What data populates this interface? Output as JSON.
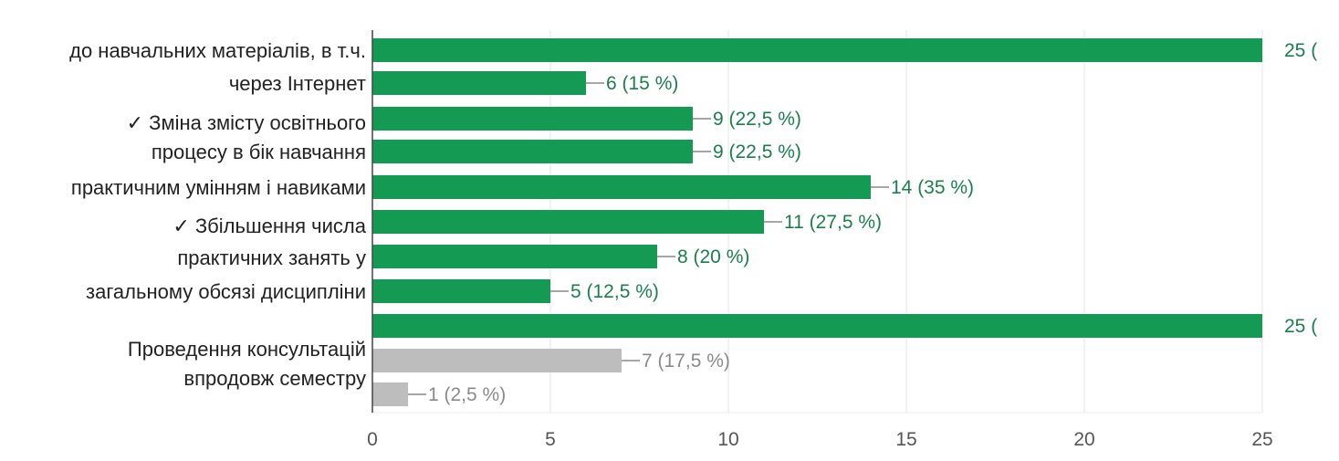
{
  "chart_data": {
    "type": "bar",
    "orientation": "horizontal",
    "category_labels": [
      "до навчальних матеріалів, в т.ч.",
      "через Інтернет",
      "✓ Зміна змісту освітнього",
      "процесу в бік навчання",
      "практичним умінням і навиками",
      "✓ Збільшення числа",
      "практичних занять у",
      "загальному обсязі дисципліни",
      "Проведення консультацій",
      "впродовж семестру"
    ],
    "bars": [
      {
        "value": 25,
        "label": "25 (",
        "color": "#159a54"
      },
      {
        "value": 6,
        "label": "6 (15 %)",
        "color": "#159a54"
      },
      {
        "value": 9,
        "label": "9 (22,5 %)",
        "color": "#159a54"
      },
      {
        "value": 9,
        "label": "9 (22,5 %)",
        "color": "#159a54"
      },
      {
        "value": 14,
        "label": "14 (35 %)",
        "color": "#159a54"
      },
      {
        "value": 11,
        "label": "11 (27,5 %)",
        "color": "#159a54"
      },
      {
        "value": 8,
        "label": "8 (20 %)",
        "color": "#159a54"
      },
      {
        "value": 5,
        "label": "5 (12,5 %)",
        "color": "#159a54"
      },
      {
        "value": 25,
        "label": "25 (",
        "color": "#159a54"
      },
      {
        "value": 7,
        "label": "7 (17,5 %)",
        "color": "#bdbdbd"
      },
      {
        "value": 1,
        "label": "1 (2,5 %)",
        "color": "#bdbdbd"
      }
    ],
    "x_ticks": [
      "0",
      "5",
      "10",
      "15",
      "20",
      "25"
    ],
    "xlim": [
      0,
      25
    ],
    "grid": true,
    "colors": {
      "primary": "#159a54",
      "secondary": "#bdbdbd",
      "value_label_primary": "#1b7f4c",
      "value_label_secondary": "#8a8a8a"
    }
  }
}
